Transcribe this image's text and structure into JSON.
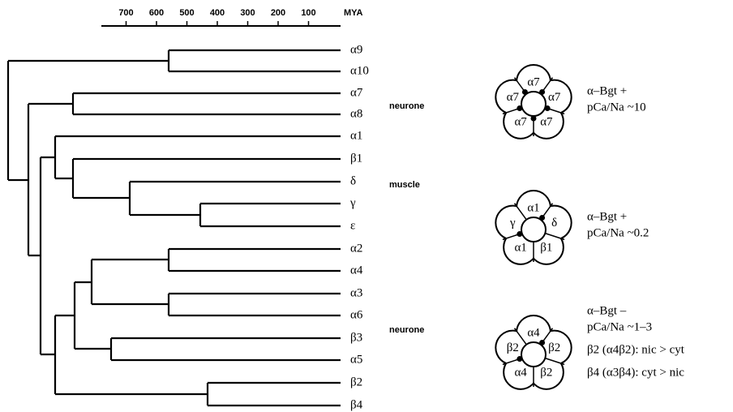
{
  "axis": {
    "label": "MYA",
    "ticks": [
      700,
      600,
      500,
      400,
      300,
      200,
      100
    ]
  },
  "leaves": [
    "α9",
    "α10",
    "α7",
    "α8",
    "α1",
    "β1",
    "δ",
    "γ",
    "ε",
    "α2",
    "α4",
    "α3",
    "α6",
    "β3",
    "α5",
    "β2",
    "β4"
  ],
  "groups": [
    "neurone",
    "muscle",
    "neurone"
  ],
  "receptors": [
    {
      "subunits": [
        "α7",
        "α7",
        "α7",
        "α7",
        "α7"
      ],
      "notes": [
        "α–Bgt +",
        "pCa/Na ~10"
      ]
    },
    {
      "subunits": [
        "α1",
        "δ",
        "β1",
        "α1",
        "γ"
      ],
      "notes": [
        "α–Bgt +",
        "pCa/Na ~0.2"
      ]
    },
    {
      "subunits": [
        "α4",
        "β2",
        "β2",
        "α4",
        "β2"
      ],
      "notes": [
        "α–Bgt –",
        "pCa/Na ~1–3",
        "β2 (α4β2): nic > cyt",
        "β4 (α3β4): cyt > nic"
      ]
    }
  ]
}
